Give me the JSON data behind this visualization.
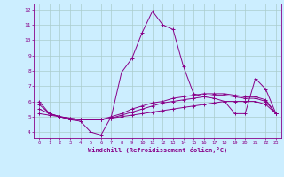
{
  "xlabel": "Windchill (Refroidissement éolien,°C)",
  "bg_color": "#cceeff",
  "grid_color": "#aacccc",
  "line_color": "#880088",
  "x_values": [
    0,
    1,
    2,
    3,
    4,
    5,
    6,
    7,
    8,
    9,
    10,
    11,
    12,
    13,
    14,
    15,
    16,
    17,
    18,
    19,
    20,
    21,
    22,
    23
  ],
  "series1": [
    6.0,
    5.2,
    5.0,
    4.8,
    4.7,
    4.0,
    3.8,
    5.0,
    7.9,
    8.8,
    10.5,
    11.9,
    11.0,
    10.7,
    8.3,
    6.5,
    6.3,
    6.2,
    6.0,
    5.2,
    5.2,
    7.5,
    6.8,
    5.2
  ],
  "series2": [
    5.8,
    5.2,
    5.0,
    4.9,
    4.8,
    4.8,
    4.8,
    5.0,
    5.2,
    5.5,
    5.7,
    5.9,
    6.0,
    6.2,
    6.3,
    6.4,
    6.5,
    6.5,
    6.5,
    6.4,
    6.3,
    6.3,
    6.1,
    5.2
  ],
  "series3": [
    5.5,
    5.2,
    5.0,
    4.9,
    4.8,
    4.8,
    4.8,
    4.9,
    5.1,
    5.3,
    5.5,
    5.7,
    5.9,
    6.0,
    6.1,
    6.2,
    6.3,
    6.4,
    6.4,
    6.3,
    6.2,
    6.2,
    6.0,
    5.2
  ],
  "series4": [
    5.2,
    5.1,
    5.0,
    4.8,
    4.8,
    4.8,
    4.8,
    4.9,
    5.0,
    5.1,
    5.2,
    5.3,
    5.4,
    5.5,
    5.6,
    5.7,
    5.8,
    5.9,
    6.0,
    6.0,
    6.0,
    6.0,
    5.8,
    5.2
  ],
  "ylim": [
    3.6,
    12.4
  ],
  "yticks": [
    4,
    5,
    6,
    7,
    8,
    9,
    10,
    11,
    12
  ],
  "xlim": [
    -0.5,
    23.5
  ]
}
